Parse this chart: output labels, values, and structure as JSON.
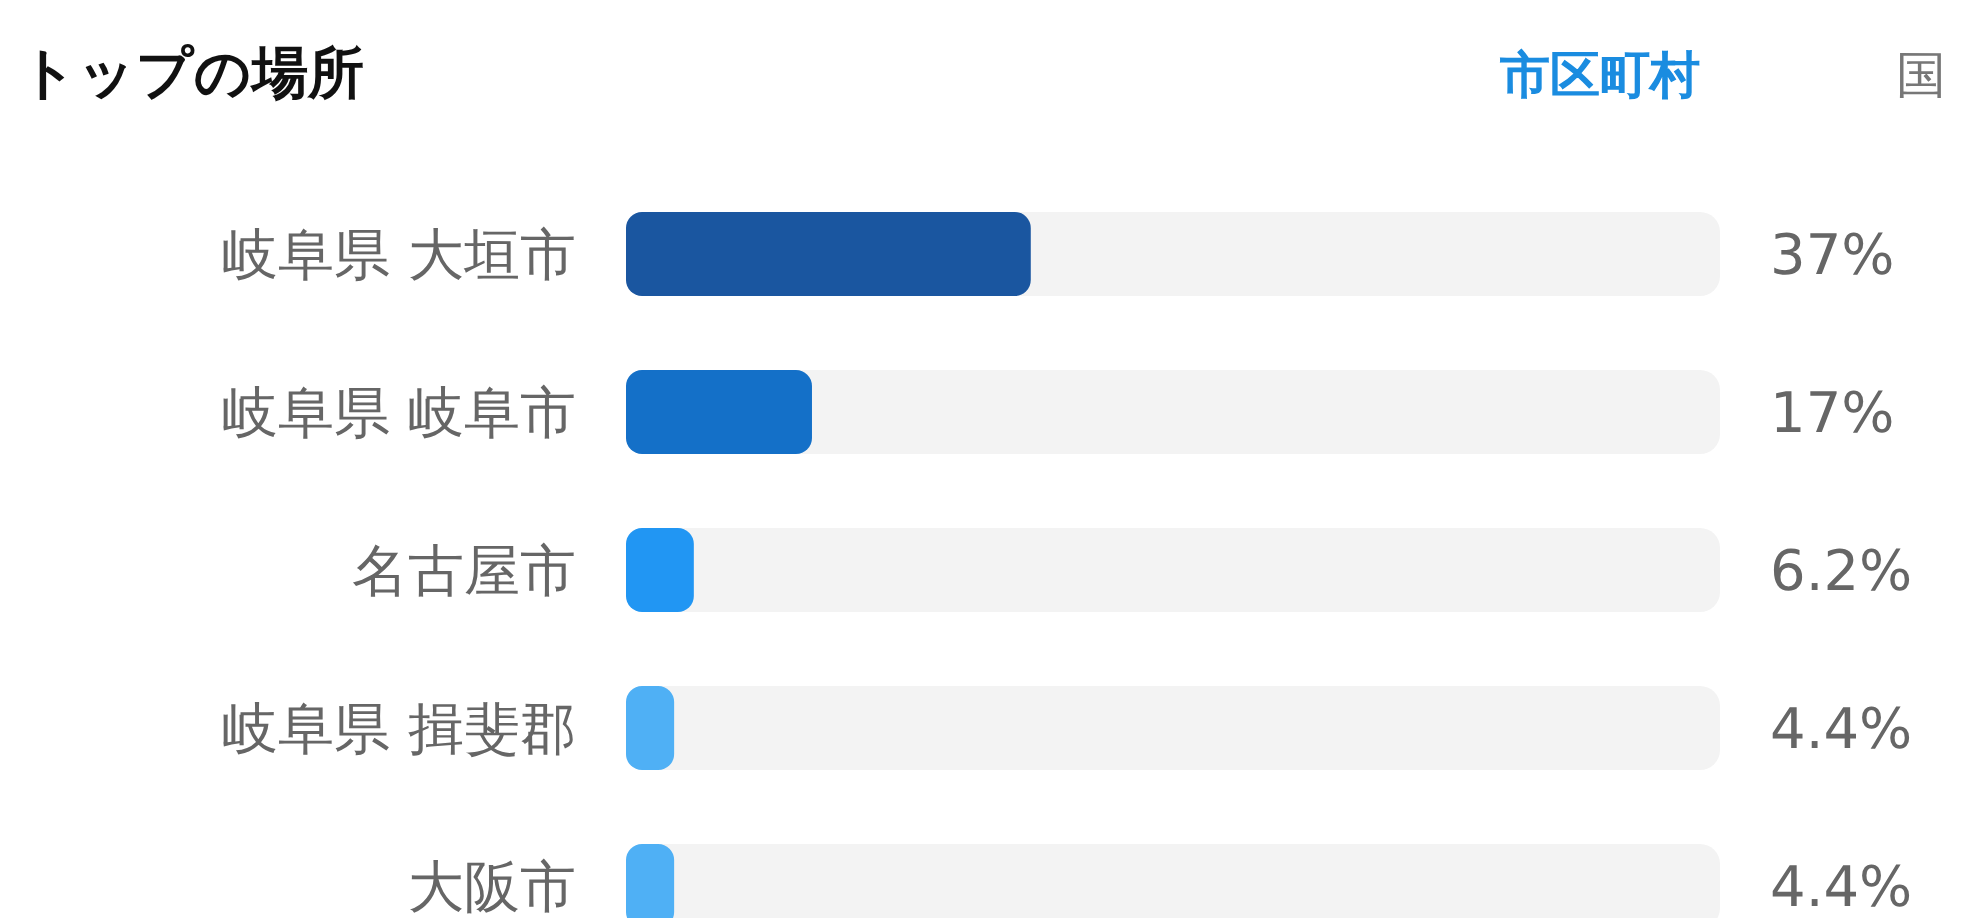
{
  "chart_data": {
    "type": "bar",
    "orientation": "horizontal",
    "title": "トップの場所",
    "annotations": [
      "市区町村",
      "国"
    ],
    "categories": [
      "岐阜県 大垣市",
      "岐阜県 岐阜市",
      "名古屋市",
      "岐阜県 揖斐郡",
      "大阪市"
    ],
    "values": [
      37,
      17,
      6.2,
      4.4,
      4.4
    ],
    "colors": [
      "#1a56a0",
      "#1470c8",
      "#2196f3",
      "#4fb0f5",
      "#4fb0f5"
    ],
    "value_labels": [
      "37%",
      "17%",
      "6.2%",
      "4.4%",
      "4.4%"
    ],
    "xlim": [
      0,
      100
    ],
    "tick_labels": "y"
  }
}
